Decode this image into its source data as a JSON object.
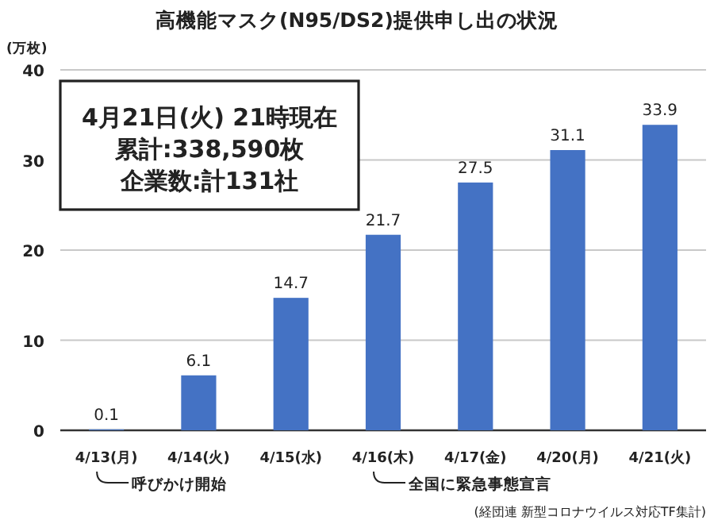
{
  "chart_data": {
    "type": "bar",
    "title": "高機能マスク(N95/DS2)提供申し出の状況",
    "ylabel": "(万枚)",
    "categories": [
      "4/13(月)",
      "4/14(火)",
      "4/15(水)",
      "4/16(木)",
      "4/17(金)",
      "4/20(月)",
      "4/21(火)"
    ],
    "values": [
      0.1,
      6.1,
      14.7,
      21.7,
      27.5,
      31.1,
      33.9
    ],
    "color": "#4472c4",
    "ylim": [
      0,
      40
    ],
    "yticks": [
      0,
      10,
      20,
      30,
      40
    ],
    "grid": "y",
    "data_labels": true,
    "annotations": [
      "4月21日(火) 21時現在",
      "累計:338,590枚",
      "企業数:計131社",
      "呼びかけ開始",
      "全国に緊急事態宣言",
      "(経団連 新型コロナウイルス対応TF集計)"
    ]
  }
}
